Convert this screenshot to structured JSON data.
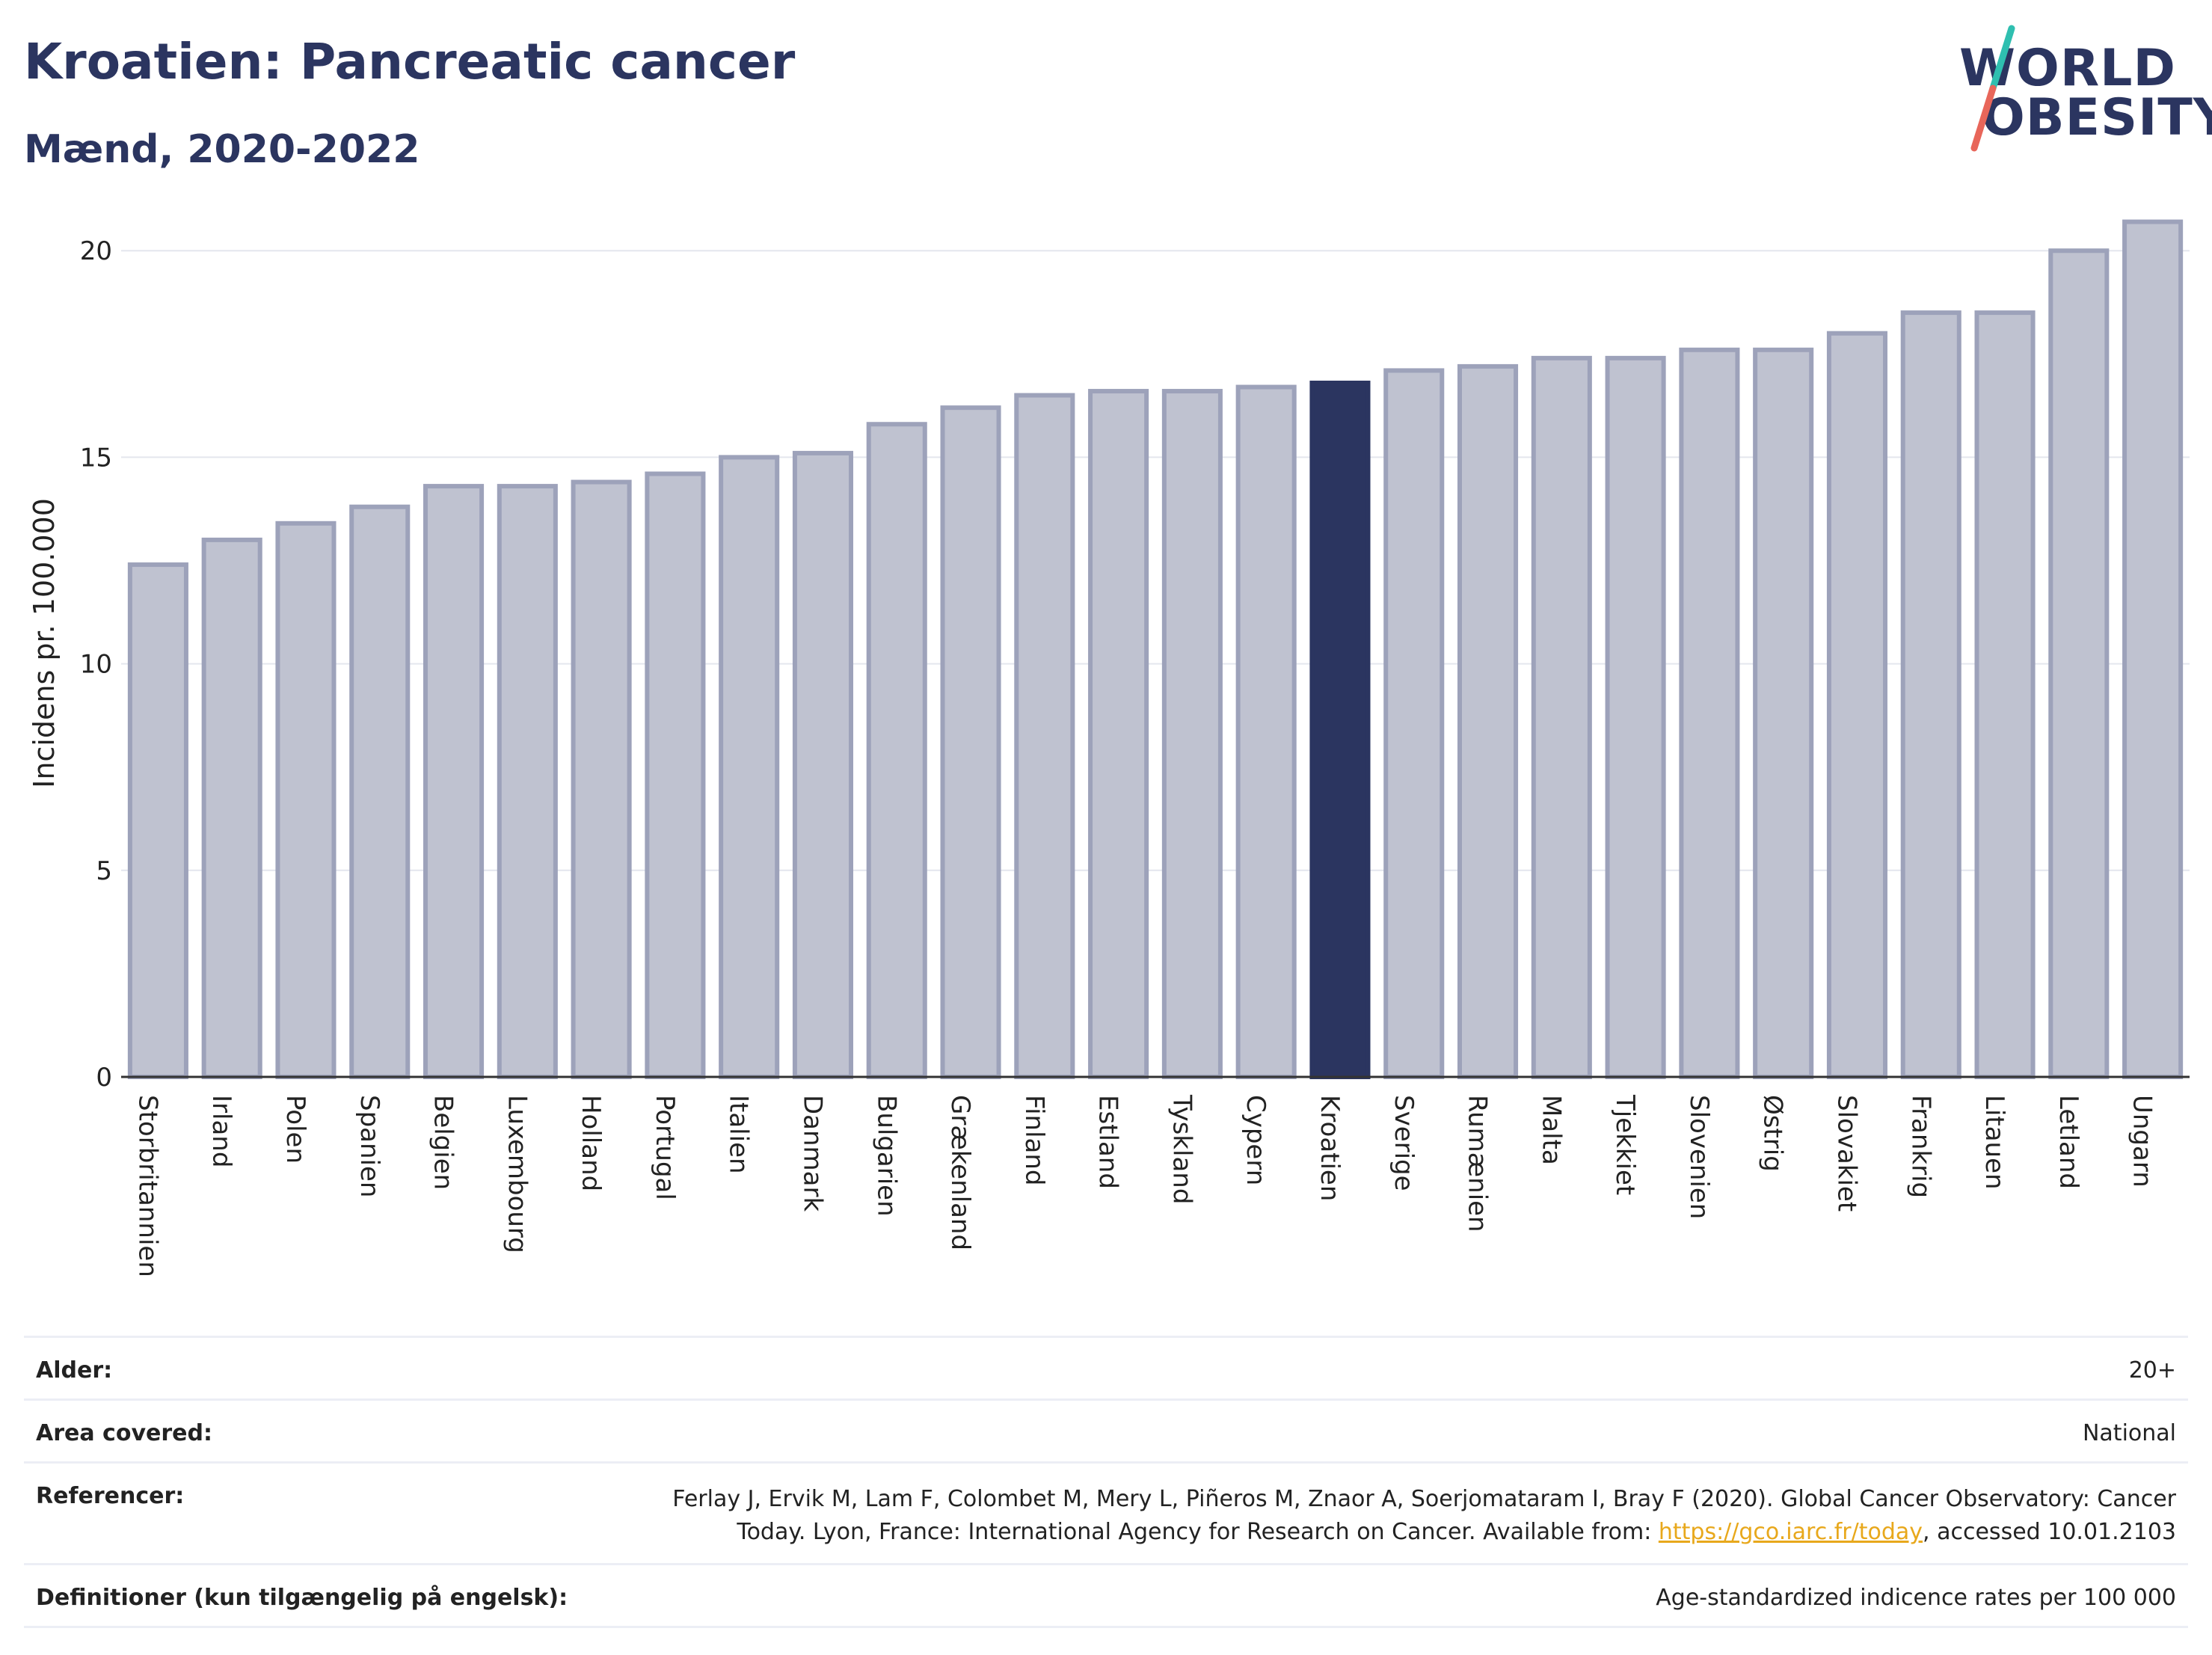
{
  "header": {
    "title": "Kroatien: Pancreatic cancer",
    "subtitle": "Mænd, 2020-2022"
  },
  "logo": {
    "line1": "WORLD",
    "line2": "OBESITY",
    "colors": {
      "text": "#2b3560",
      "slash_top": "#2fbfb0",
      "slash_bottom": "#e8665a"
    }
  },
  "colors": {
    "bar": "#bfc2d0",
    "bar_border": "#9da2ba",
    "highlight": "#2b3560",
    "grid": "#e4e6ee",
    "axis": "#333333"
  },
  "chart_data": {
    "type": "bar",
    "ylabel": "Incidens pr. 100.000",
    "xlabel": "",
    "ylim": [
      0,
      21
    ],
    "yticks": [
      0,
      5,
      10,
      15,
      20
    ],
    "grid": true,
    "highlight": "Kroatien",
    "categories": [
      "Storbritannien",
      "Irland",
      "Polen",
      "Spanien",
      "Belgien",
      "Luxembourg",
      "Holland",
      "Portugal",
      "Italien",
      "Danmark",
      "Bulgarien",
      "Grækenland",
      "Finland",
      "Estland",
      "Tyskland",
      "Cypern",
      "Kroatien",
      "Sverige",
      "Rumænien",
      "Malta",
      "Tjekkiet",
      "Slovenien",
      "Østrig",
      "Slovakiet",
      "Frankrig",
      "Litauen",
      "Letland",
      "Ungarn"
    ],
    "values": [
      12.4,
      13.0,
      13.4,
      13.8,
      14.3,
      14.3,
      14.4,
      14.6,
      15.0,
      15.1,
      15.8,
      16.2,
      16.5,
      16.6,
      16.6,
      16.7,
      16.8,
      17.1,
      17.2,
      17.4,
      17.4,
      17.6,
      17.6,
      18.0,
      18.5,
      18.5,
      20.0,
      20.7
    ]
  },
  "meta": {
    "age_label": "Alder:",
    "age_value": "20+",
    "area_label": "Area covered:",
    "area_value": "National",
    "ref_label": "Referencer:",
    "ref_line1": "Ferlay J, Ervik M, Lam F, Colombet M, Mery L, Piñeros M, Znaor A, Soerjomataram I, Bray F (2020). Global Cancer Observatory: Cancer",
    "ref_line2_prefix": "Today. Lyon, France: International Agency for Research on Cancer. Available from: ",
    "ref_link": "https://gco.iarc.fr/today",
    "ref_line2_suffix": ", accessed 10.01.2103",
    "def_label": "Definitioner (kun tilgængelig på engelsk):",
    "def_value": "Age-standardized indicence rates per 100 000"
  }
}
